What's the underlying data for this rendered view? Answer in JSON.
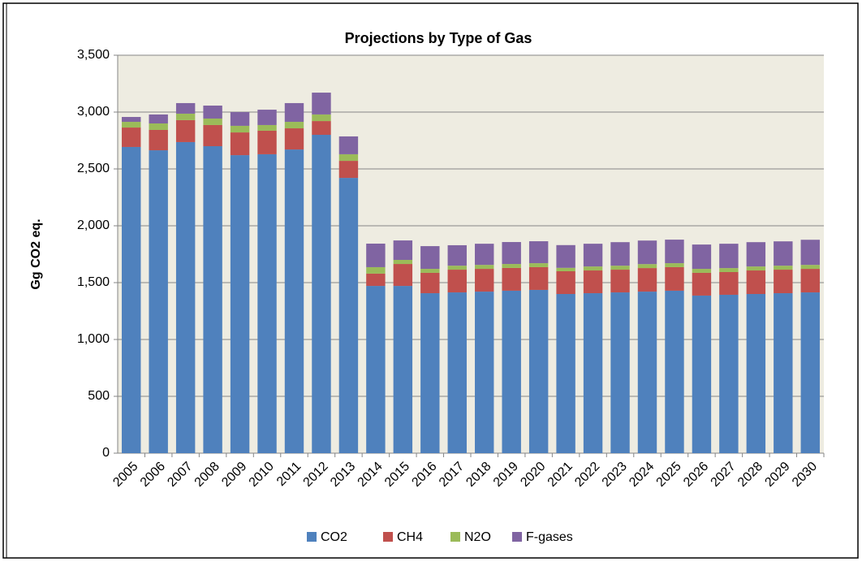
{
  "chart_data": {
    "type": "stacked_bar",
    "title": "Projections by Type of Gas",
    "y_label": "Gg CO2 eq.",
    "categories": [
      "2005",
      "2006",
      "2007",
      "2008",
      "2009",
      "2010",
      "2011",
      "2012",
      "2013",
      "2014",
      "2015",
      "2016",
      "2017",
      "2018",
      "2019",
      "2020",
      "2021",
      "2022",
      "2023",
      "2024",
      "2025",
      "2026",
      "2027",
      "2028",
      "2029",
      "2030"
    ],
    "series": [
      {
        "name": "CO2",
        "color": "#4f81bd",
        "values": [
          2693,
          2664,
          2736,
          2700,
          2621,
          2629,
          2671,
          2800,
          2421,
          1471,
          1471,
          1407,
          1414,
          1421,
          1429,
          1436,
          1400,
          1407,
          1414,
          1421,
          1429,
          1386,
          1393,
          1400,
          1407,
          1414
        ]
      },
      {
        "name": "CH4",
        "color": "#c0504d",
        "values": [
          171,
          179,
          193,
          186,
          200,
          207,
          186,
          121,
          150,
          108,
          193,
          179,
          200,
          200,
          200,
          200,
          200,
          200,
          200,
          207,
          207,
          200,
          200,
          207,
          207,
          207
        ]
      },
      {
        "name": "N2O",
        "color": "#9bbb59",
        "values": [
          50,
          57,
          57,
          57,
          58,
          50,
          57,
          58,
          58,
          57,
          36,
          35,
          35,
          35,
          35,
          35,
          30,
          35,
          35,
          35,
          35,
          35,
          35,
          35,
          35,
          35
        ]
      },
      {
        "name": "F-gases",
        "color": "#8064a2",
        "values": [
          43,
          79,
          93,
          114,
          121,
          135,
          165,
          192,
          157,
          207,
          171,
          200,
          180,
          186,
          193,
          193,
          200,
          200,
          207,
          207,
          207,
          214,
          214,
          214,
          214,
          221
        ]
      }
    ],
    "ylim": [
      0,
      3500
    ],
    "yticks": [
      0,
      500,
      {
        "value": 1000,
        "label": "1,000"
      },
      {
        "value": 1500,
        "label": "1,500"
      },
      {
        "value": 2000,
        "label": "2,000"
      },
      {
        "value": 2500,
        "label": "2,500"
      },
      {
        "value": 3000,
        "label": "3,000"
      },
      {
        "value": 3500,
        "label": "3,500"
      }
    ],
    "grid": true,
    "plot_background": "#eeece1",
    "legend": "bottom"
  }
}
